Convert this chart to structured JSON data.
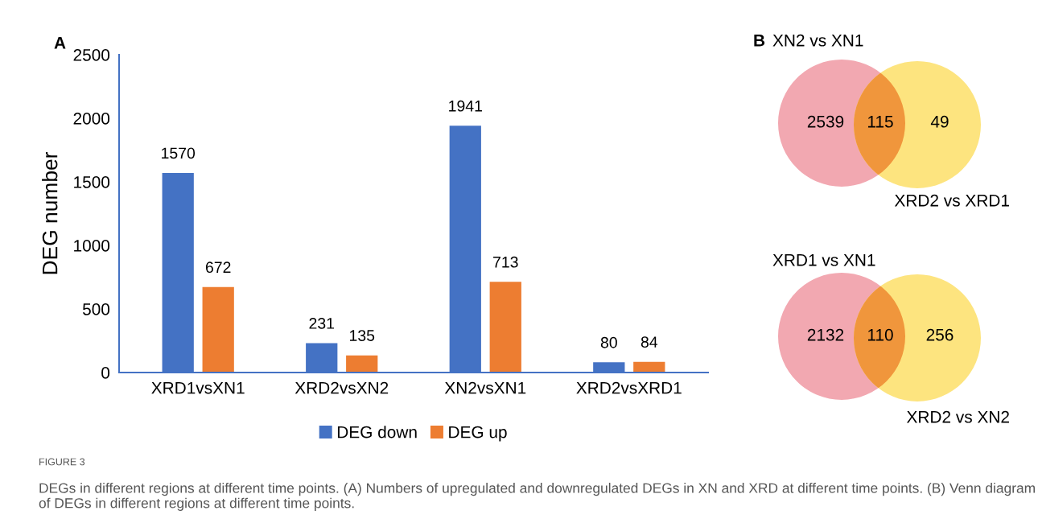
{
  "chart_data": [
    {
      "type": "bar",
      "title": "A",
      "ylabel": "DEG number",
      "categories": [
        "XRD1vsXN1",
        "XRD2vsXN2",
        "XN2vsXN1",
        "XRD2vsXRD1"
      ],
      "series": [
        {
          "name": "DEG down",
          "color": "#4472c4",
          "values": [
            1570,
            231,
            1941,
            80
          ]
        },
        {
          "name": "DEG up",
          "color": "#ed7d31",
          "values": [
            672,
            135,
            713,
            84
          ]
        }
      ],
      "ylim": [
        0,
        2500
      ],
      "yticks": [
        0,
        500,
        1000,
        1500,
        2000,
        2500
      ],
      "data_labels": true,
      "legend": "bottom",
      "grid": false,
      "annotations": [
        "FIGURE 3",
        "DEGs in different regions at different time points. (A) Numbers of upregulated and downregulated DEGs in XN and XRD at different time points. (B) Venn diagram of DEGs in different regions at different time points."
      ]
    },
    {
      "type": "other",
      "title": "B",
      "annotations": [
        "XN2 vs XN1",
        "XRD2 vs XRD1"
      ],
      "categories": [
        null,
        null,
        null
      ],
      "values": [
        2539,
        115,
        49
      ],
      "data_labels": true,
      "colors": [
        "#f2a8b1",
        "#f0963c",
        "#fde47f"
      ]
    },
    {
      "type": "other",
      "annotations": [
        "XRD1 vs XN1",
        "XRD2 vs XN2"
      ],
      "categories": [
        null,
        null,
        null
      ],
      "values": [
        2132,
        110,
        256
      ],
      "data_labels": true,
      "colors": [
        "#f2a8b1",
        "#f0963c",
        "#fde47f"
      ]
    }
  ]
}
